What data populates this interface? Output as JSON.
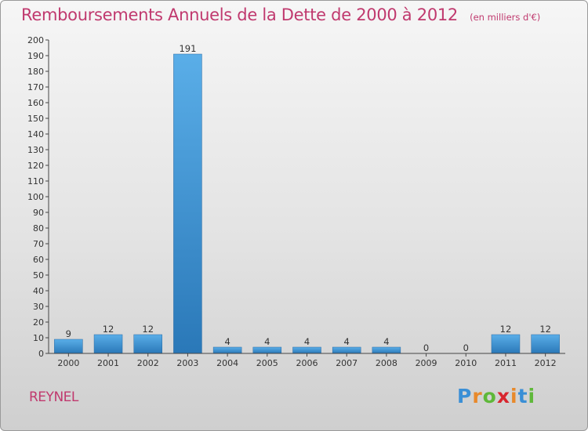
{
  "header": {
    "title": "Remboursements Annuels de la Dette de 2000 à 2012",
    "subtitle": "(en milliers d'€)"
  },
  "commune": "REYNEL",
  "logo": {
    "letters": [
      "P",
      "r",
      "o",
      "x",
      "i",
      "t",
      "i"
    ],
    "colors": [
      "#3a8fd6",
      "#e8892b",
      "#5fb83a",
      "#d8262e",
      "#e8892b",
      "#3a8fd6",
      "#5fb83a"
    ]
  },
  "chart_data": {
    "type": "bar",
    "title": "Remboursements Annuels de la Dette de 2000 à 2012",
    "subtitle": "(en milliers d'€)",
    "categories": [
      "2000",
      "2001",
      "2002",
      "2003",
      "2004",
      "2005",
      "2006",
      "2007",
      "2008",
      "2009",
      "2010",
      "2011",
      "2012"
    ],
    "values": [
      9,
      12,
      12,
      191,
      4,
      4,
      4,
      4,
      4,
      0,
      0,
      12,
      12
    ],
    "data_labels": [
      "9",
      "12",
      "12",
      "191",
      "4",
      "4",
      "4",
      "4",
      "4",
      "0",
      "0",
      "12",
      "12"
    ],
    "ylim": [
      0,
      200
    ],
    "yticks": [
      "0",
      "10",
      "20",
      "30",
      "40",
      "50",
      "60",
      "70",
      "80",
      "90",
      "100",
      "110",
      "120",
      "130",
      "140",
      "150",
      "160",
      "170",
      "180",
      "190",
      "200"
    ],
    "xlabel": "",
    "ylabel": "",
    "grid": false,
    "legend": "none",
    "bar_color_top": "#5aaee8",
    "bar_color_bottom": "#2a78b8"
  }
}
